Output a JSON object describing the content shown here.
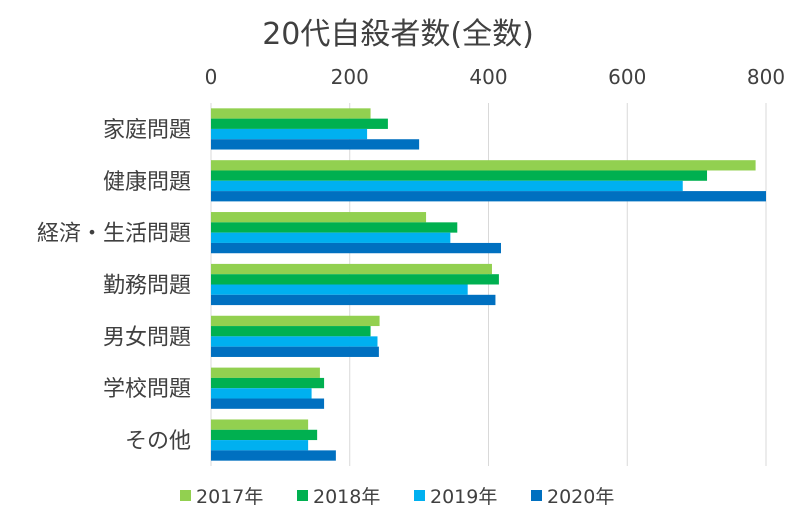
{
  "chart_data": {
    "type": "bar",
    "orientation": "horizontal",
    "title": "20代自殺者数(全数)",
    "xlabel": "",
    "ylabel": "",
    "xlim": [
      0,
      800
    ],
    "ticks": [
      0,
      200,
      400,
      600,
      800
    ],
    "grid": true,
    "legend_position": "bottom",
    "categories": [
      "家庭問題",
      "健康問題",
      "経済・生活問題",
      "勤務問題",
      "男女問題",
      "学校問題",
      "その他"
    ],
    "series": [
      {
        "name": "2017年",
        "color": "#92d050",
        "values": [
          230,
          785,
          310,
          405,
          243,
          157,
          140
        ]
      },
      {
        "name": "2018年",
        "color": "#00b050",
        "values": [
          255,
          715,
          355,
          415,
          230,
          163,
          153
        ]
      },
      {
        "name": "2019年",
        "color": "#00b0f0",
        "values": [
          225,
          680,
          345,
          370,
          240,
          145,
          140
        ]
      },
      {
        "name": "2020年",
        "color": "#0070c0",
        "values": [
          300,
          800,
          418,
          410,
          242,
          163,
          180
        ]
      }
    ]
  }
}
